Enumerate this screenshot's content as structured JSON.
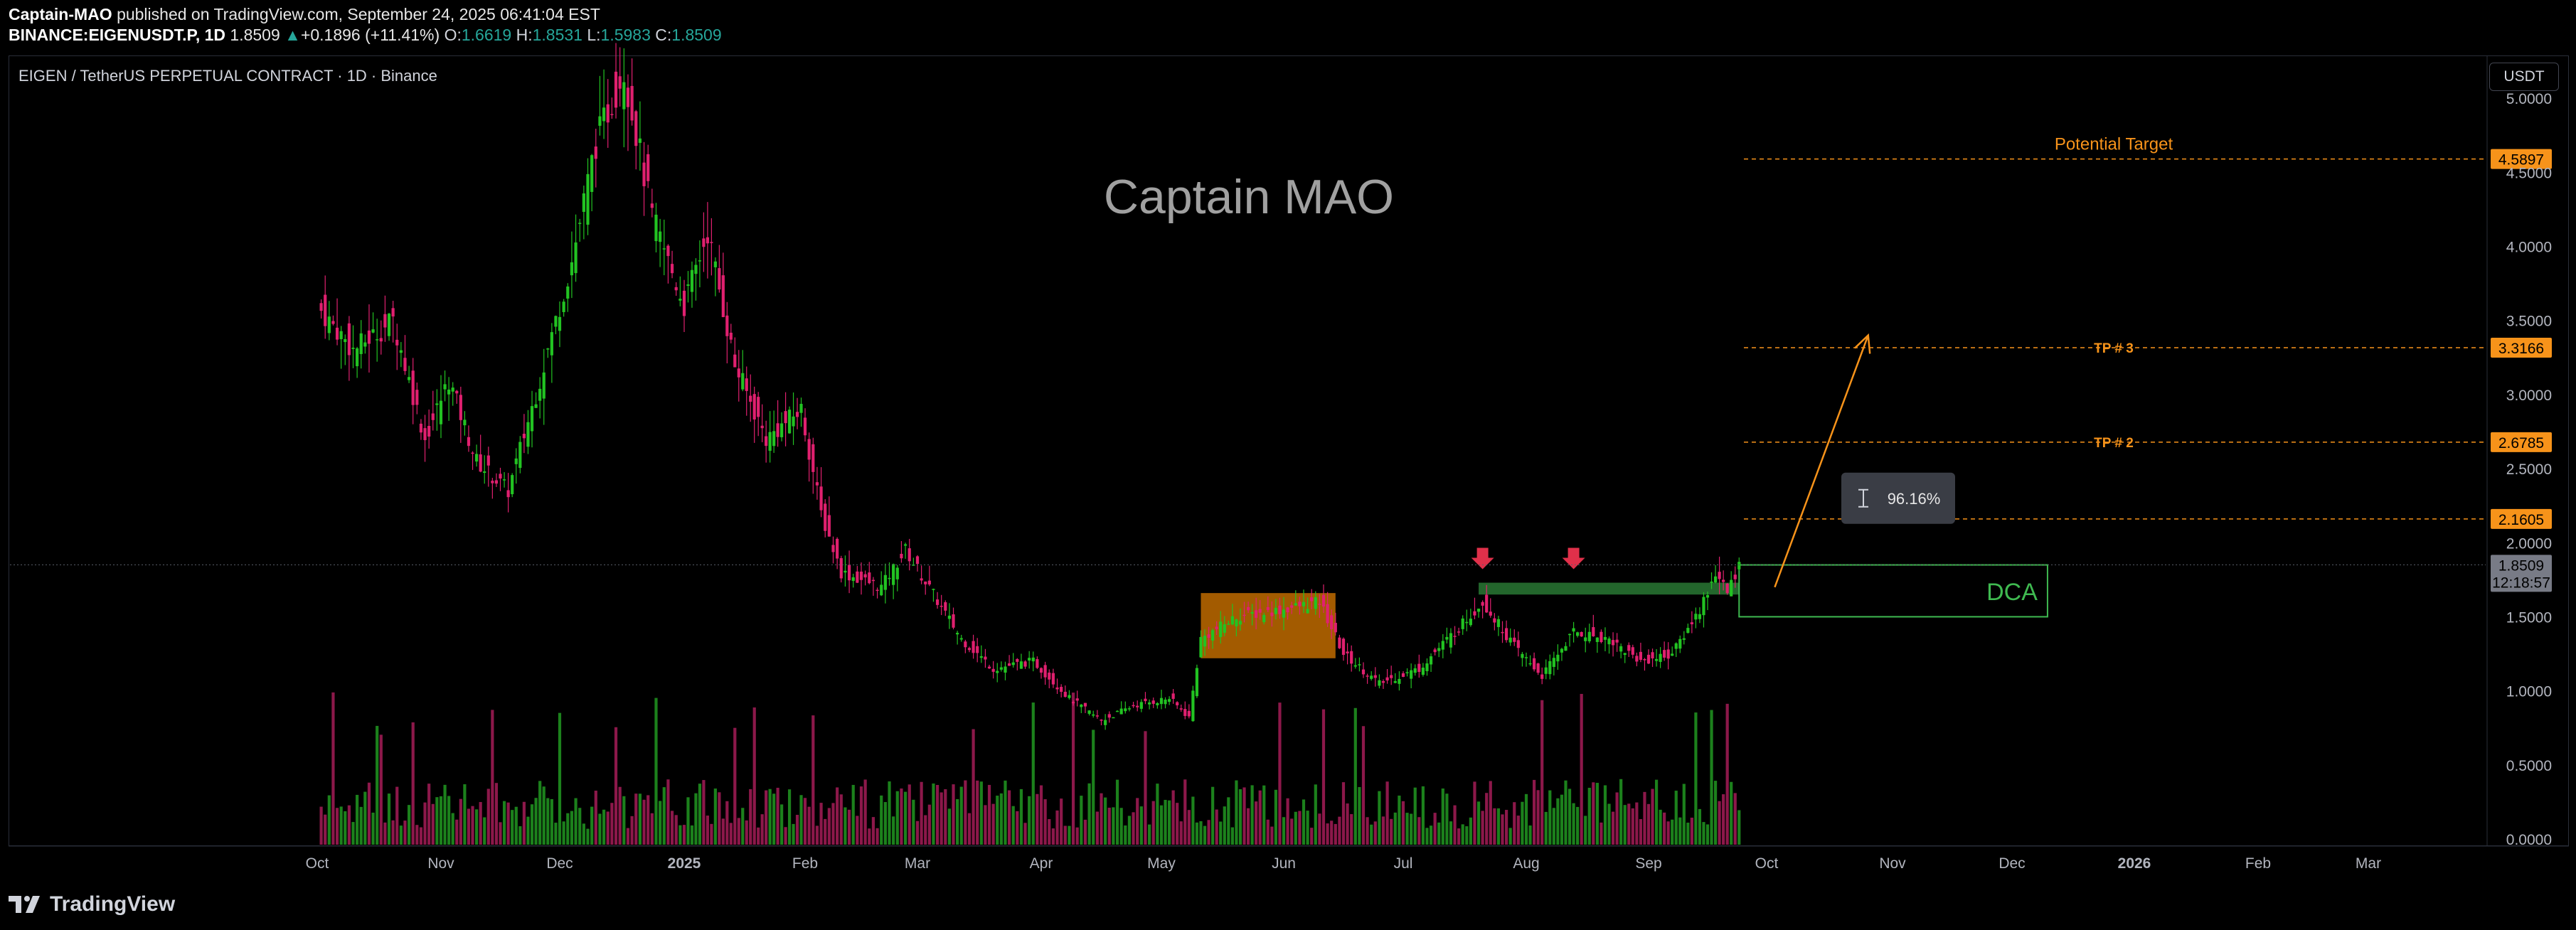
{
  "header": {
    "publisher": "Captain-MAO",
    "published_text": "published on TradingView.com, September 24, 2025 06:41:04 EST",
    "symbol": "BINANCE:EIGENUSDT.P, 1D",
    "last": "1.8509",
    "change_arrow": "▲",
    "change": "+0.1896 (+11.41%)",
    "o_label": "O:",
    "o_value": "1.6619",
    "h_label": "H:",
    "h_value": "1.8531",
    "l_label": "L:",
    "l_value": "1.5983",
    "c_label": "C:",
    "c_value": "1.8509"
  },
  "chart_title": "EIGEN / TetherUS PERPETUAL CONTRACT · 1D · Binance",
  "currency_button": "USDT",
  "footer": {
    "brand": "TradingView"
  },
  "colors": {
    "up": "#26a69a",
    "bull": "#22c322",
    "bear": "#e0206f",
    "accent": "#f7931a",
    "dca": "#3fb950",
    "box": "#d97a00",
    "marker": "#e0304a"
  },
  "icons": [
    "tradingview-logo-icon",
    "measure-icon",
    "down-arrow-marker-icon"
  ],
  "chart_data": {
    "type": "candlestick",
    "title": "EIGEN / TetherUS PERPETUAL CONTRACT · 1D · Binance",
    "watermark": "Captain MAO",
    "y_axis": {
      "min": 0,
      "max": 5.5,
      "ticks": [
        "5.0000",
        "4.5000",
        "4.0000",
        "3.5000",
        "3.0000",
        "2.5000",
        "2.0000",
        "1.5000",
        "1.0000",
        "0.5000",
        "0.0000"
      ],
      "tick_values": [
        5.0,
        4.5,
        4.0,
        3.5,
        3.0,
        2.5,
        2.0,
        1.5,
        1.0,
        0.5,
        0.0
      ]
    },
    "x_axis": {
      "labels": [
        "Oct",
        "Nov",
        "Dec",
        "2025",
        "Feb",
        "Mar",
        "Apr",
        "May",
        "Jun",
        "Jul",
        "Aug",
        "Sep",
        "Oct",
        "Nov",
        "Dec",
        "2026",
        "Feb",
        "Mar"
      ],
      "dates": [
        "2024-10-01",
        "2024-11-01",
        "2024-12-01",
        "2025-01-01",
        "2025-02-01",
        "2025-03-01",
        "2025-04-01",
        "2025-05-01",
        "2025-06-01",
        "2025-07-01",
        "2025-08-01",
        "2025-09-01",
        "2025-10-01",
        "2025-11-01",
        "2025-12-01",
        "2026-01-01",
        "2026-02-01",
        "2026-03-01"
      ],
      "bold": [
        "2025",
        "2026"
      ]
    },
    "price_path": [
      {
        "date": "2024-10-01",
        "close": 3.6
      },
      {
        "date": "2024-10-10",
        "close": 3.3
      },
      {
        "date": "2024-10-20",
        "close": 3.5
      },
      {
        "date": "2024-10-28",
        "close": 2.7
      },
      {
        "date": "2024-11-03",
        "close": 3.1
      },
      {
        "date": "2024-11-10",
        "close": 2.55
      },
      {
        "date": "2024-11-18",
        "close": 2.35
      },
      {
        "date": "2024-11-26",
        "close": 3.1
      },
      {
        "date": "2024-12-04",
        "close": 3.9
      },
      {
        "date": "2024-12-10",
        "close": 4.7
      },
      {
        "date": "2024-12-17",
        "close": 5.2
      },
      {
        "date": "2024-12-24",
        "close": 4.2
      },
      {
        "date": "2025-01-01",
        "close": 3.6
      },
      {
        "date": "2025-01-07",
        "close": 4.1
      },
      {
        "date": "2025-01-14",
        "close": 3.2
      },
      {
        "date": "2025-01-22",
        "close": 2.7
      },
      {
        "date": "2025-01-31",
        "close": 2.9
      },
      {
        "date": "2025-02-05",
        "close": 2.2
      },
      {
        "date": "2025-02-10",
        "close": 1.8
      },
      {
        "date": "2025-02-20",
        "close": 1.7
      },
      {
        "date": "2025-02-26",
        "close": 1.95
      },
      {
        "date": "2025-03-05",
        "close": 1.65
      },
      {
        "date": "2025-03-12",
        "close": 1.35
      },
      {
        "date": "2025-03-20",
        "close": 1.15
      },
      {
        "date": "2025-03-30",
        "close": 1.2
      },
      {
        "date": "2025-04-08",
        "close": 0.95
      },
      {
        "date": "2025-04-16",
        "close": 0.8
      },
      {
        "date": "2025-04-24",
        "close": 0.9
      },
      {
        "date": "2025-05-03",
        "close": 0.95
      },
      {
        "date": "2025-05-08",
        "close": 0.82
      },
      {
        "date": "2025-05-11",
        "close": 1.35
      },
      {
        "date": "2025-05-20",
        "close": 1.5
      },
      {
        "date": "2025-06-01",
        "close": 1.55
      },
      {
        "date": "2025-06-10",
        "close": 1.6
      },
      {
        "date": "2025-06-16",
        "close": 1.25
      },
      {
        "date": "2025-06-25",
        "close": 1.05
      },
      {
        "date": "2025-07-05",
        "close": 1.15
      },
      {
        "date": "2025-07-14",
        "close": 1.4
      },
      {
        "date": "2025-07-21",
        "close": 1.6
      },
      {
        "date": "2025-07-29",
        "close": 1.3
      },
      {
        "date": "2025-08-05",
        "close": 1.1
      },
      {
        "date": "2025-08-13",
        "close": 1.4
      },
      {
        "date": "2025-08-22",
        "close": 1.35
      },
      {
        "date": "2025-08-30",
        "close": 1.2
      },
      {
        "date": "2025-09-07",
        "close": 1.25
      },
      {
        "date": "2025-09-14",
        "close": 1.55
      },
      {
        "date": "2025-09-18",
        "close": 1.8
      },
      {
        "date": "2025-09-21",
        "close": 1.66
      },
      {
        "date": "2025-09-24",
        "close": 1.85
      }
    ],
    "volume_scale_note": "volume histogram, unlabeled",
    "levels": [
      {
        "name": "Potential Target",
        "value": 4.5897,
        "label": "4.5897"
      },
      {
        "name": "TP # 3",
        "value": 3.3166,
        "label": "3.3166"
      },
      {
        "name": "TP # 2",
        "value": 2.6785,
        "label": "2.6785"
      },
      {
        "name": "",
        "value": 2.1605,
        "label": "2.1605"
      }
    ],
    "last_price": {
      "value": 1.8509,
      "label": "1.8509",
      "countdown": "12:18:57"
    },
    "annotations": {
      "potential_target": "Potential Target",
      "tp3": "TP # 3",
      "tp2": "TP # 2",
      "dca": "DCA",
      "measure": "96.16%"
    },
    "zones": {
      "consolidation_box": {
        "start": "2025-05-11",
        "end": "2025-06-14",
        "low": 1.22,
        "high": 1.66
      },
      "support_band": {
        "start": "2025-07-20",
        "end": "2025-09-24",
        "low": 1.65,
        "high": 1.73
      },
      "dca_box": {
        "start": "2025-09-24",
        "end": "2025-12-10",
        "low": 1.5,
        "high": 1.85
      },
      "markers": [
        "2025-07-21",
        "2025-08-13"
      ],
      "projection_arrow": {
        "from_date": "2025-10-03",
        "from_value": 1.7,
        "to_date": "2025-10-26",
        "to_value": 3.4
      },
      "measure_box": {
        "date": "2025-11-01",
        "value": 2.3
      }
    },
    "grid": false
  }
}
